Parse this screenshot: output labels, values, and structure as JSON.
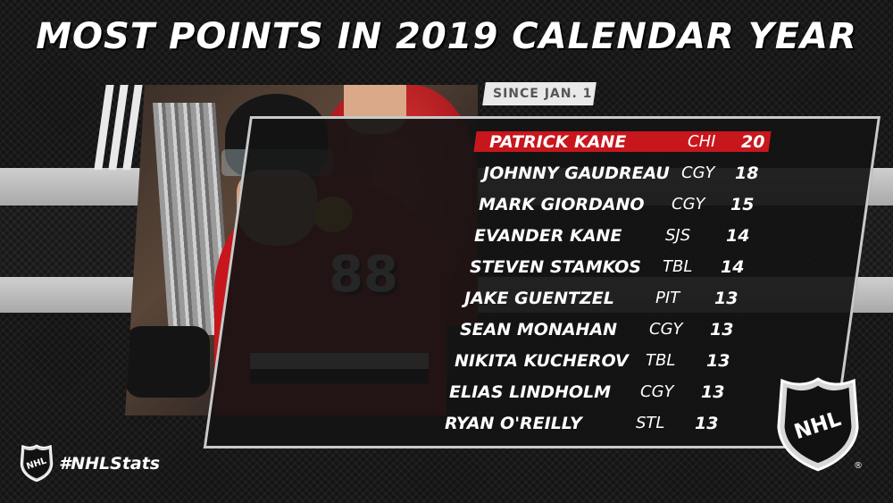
{
  "title": "MOST POINTS IN 2019 CALENDAR YEAR",
  "subtitle": "SINCE JAN. 1",
  "hashtag": "#NHLStats",
  "logo_text": "NHL",
  "registered_mark": "®",
  "highlight_color": "#c8161d",
  "players": [
    {
      "name": "PATRICK KANE",
      "team": "CHI",
      "points": "20"
    },
    {
      "name": "JOHNNY GAUDREAU",
      "team": "CGY",
      "points": "18"
    },
    {
      "name": "MARK GIORDANO",
      "team": "CGY",
      "points": "15"
    },
    {
      "name": "EVANDER KANE",
      "team": "SJS",
      "points": "14"
    },
    {
      "name": "STEVEN STAMKOS",
      "team": "TBL",
      "points": "14"
    },
    {
      "name": "JAKE GUENTZEL",
      "team": "PIT",
      "points": "13"
    },
    {
      "name": "SEAN MONAHAN",
      "team": "CGY",
      "points": "13"
    },
    {
      "name": "NIKITA KUCHEROV",
      "team": "TBL",
      "points": "13"
    },
    {
      "name": "ELIAS LINDHOLM",
      "team": "CGY",
      "points": "13"
    },
    {
      "name": "RYAN O'REILLY",
      "team": "STL",
      "points": "13"
    }
  ],
  "photo": {
    "jersey_number": "88"
  }
}
